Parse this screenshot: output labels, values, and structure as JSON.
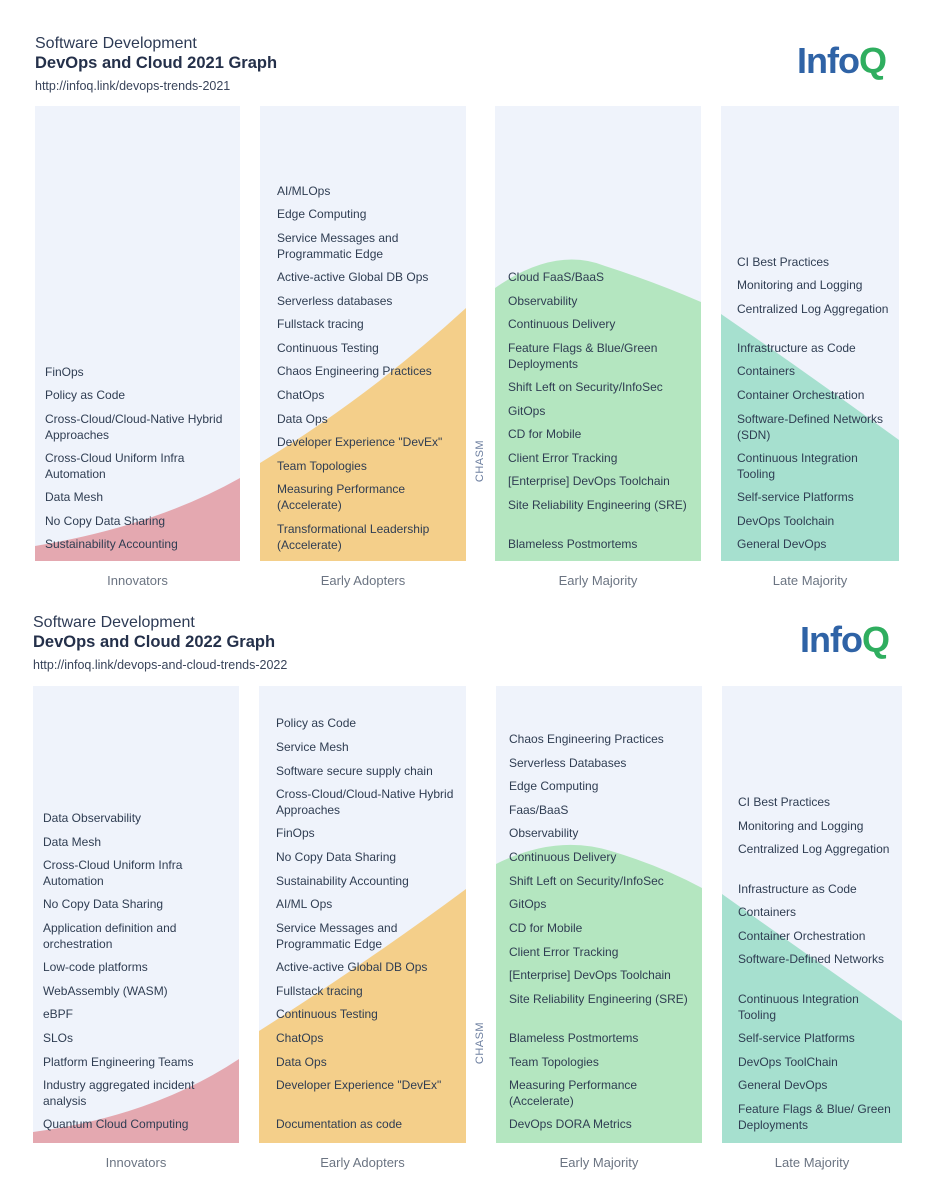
{
  "colors": {
    "innovators": "#e4a8b0",
    "early_adopters": "#f4cf8a",
    "early_majority": "#b4e6c0",
    "late_majority": "#a6e0cf",
    "column_bg": "#eff3fb",
    "logo_blue": "#2f63a6",
    "logo_green": "#2fae5f"
  },
  "graph_2021": {
    "subtitle": "Software Development",
    "title": "DevOps and Cloud 2021 Graph",
    "url": "http://infoq.link/devops-trends-2021",
    "logo": {
      "info": "Info",
      "q": "Q"
    },
    "chasm": "CHASM",
    "columns": [
      {
        "caption": "Innovators",
        "items": [
          "FinOps",
          "Policy as Code",
          "Cross-Cloud/Cloud-Native Hybrid Approaches",
          "Cross-Cloud Uniform Infra Automation",
          "Data Mesh",
          "No Copy Data Sharing",
          "Sustainability Accounting"
        ]
      },
      {
        "caption": "Early Adopters",
        "items": [
          "AI/MLOps",
          "Edge Computing",
          "Service Messages and Programmatic Edge",
          "Active-active Global DB Ops",
          "Serverless databases",
          "Fullstack tracing",
          "Continuous Testing",
          "Chaos Engineering Practices",
          "ChatOps",
          "Data Ops",
          "Developer Experience \"DevEx\"",
          "Team Topologies",
          "Measuring Performance (Accelerate)",
          "Transformational Leadership (Accelerate)"
        ]
      },
      {
        "caption": "Early Majority",
        "items": [
          "Cloud FaaS/BaaS",
          "Observability",
          "Continuous Delivery",
          "Feature Flags & Blue/Green Deployments",
          "Shift Left on Security/InfoSec",
          "GitOps",
          "CD for Mobile",
          "Client Error Tracking",
          "[Enterprise] DevOps Toolchain",
          "Site Reliability Engineering (SRE)",
          "Blameless Postmortems"
        ]
      },
      {
        "caption": "Late Majority",
        "items": [
          "CI Best Practices",
          "Monitoring and Logging",
          "Centralized Log Aggregation",
          "Infrastructure as Code",
          "Containers",
          "Container Orchestration",
          "Software-Defined Networks (SDN)",
          "Continuous Integration Tooling",
          "Self-service Platforms",
          "DevOps Toolchain",
          "General DevOps"
        ]
      }
    ]
  },
  "graph_2022": {
    "subtitle": "Software Development",
    "title": "DevOps and Cloud 2022 Graph",
    "url": "http://infoq.link/devops-and-cloud-trends-2022",
    "logo": {
      "info": "Info",
      "q": "Q"
    },
    "chasm": "CHASM",
    "columns": [
      {
        "caption": "Innovators",
        "items": [
          "Data Observability",
          "Data Mesh",
          "Cross-Cloud Uniform Infra Automation",
          "No Copy Data Sharing",
          "Application definition and orchestration",
          "Low-code platforms",
          "WebAssembly (WASM)",
          "eBPF",
          "SLOs",
          "Platform Engineering Teams",
          "Industry aggregated incident analysis",
          "Quantum Cloud Computing"
        ]
      },
      {
        "caption": "Early Adopters",
        "items": [
          "Policy as Code",
          "Service Mesh",
          "Software secure supply chain",
          "Cross-Cloud/Cloud-Native Hybrid Approaches",
          "FinOps",
          "No Copy Data Sharing",
          "Sustainability Accounting",
          "AI/ML Ops",
          "Service Messages and Programmatic Edge",
          "Active-active Global DB Ops",
          "Fullstack tracing",
          "Continuous Testing",
          "ChatOps",
          "Data Ops",
          "Developer Experience \"DevEx\"",
          "Documentation as code"
        ]
      },
      {
        "caption": "Early Majority",
        "items": [
          "Chaos Engineering Practices",
          "Serverless Databases",
          "Edge Computing",
          "Faas/BaaS",
          "Observability",
          "Continuous Delivery",
          "Shift Left on Security/InfoSec",
          "GitOps",
          "CD for Mobile",
          "Client Error Tracking",
          "[Enterprise] DevOps Toolchain",
          "Site Reliability Engineering (SRE)",
          "Blameless Postmortems",
          "Team Topologies",
          "Measuring Performance (Accelerate)",
          "DevOps DORA Metrics"
        ]
      },
      {
        "caption": "Late Majority",
        "items": [
          "CI Best Practices",
          "Monitoring and Logging",
          "Centralized Log Aggregation",
          "Infrastructure as Code",
          "Containers",
          "Container Orchestration",
          "Software-Defined Networks",
          "Continuous Integration Tooling",
          "Self-service Platforms",
          "DevOps ToolChain",
          "General DevOps",
          "Feature Flags & Blue/ Green Deployments"
        ]
      }
    ]
  }
}
